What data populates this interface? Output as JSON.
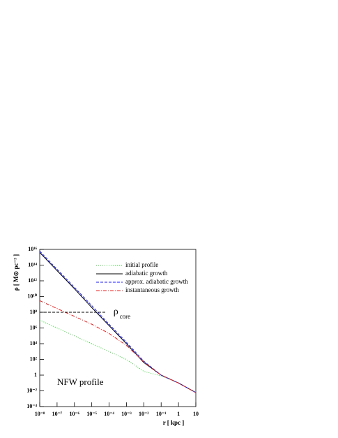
{
  "chart_data": {
    "type": "line",
    "x_label": "r [ kpc ]",
    "y_label": "ρ [ M⊙ pc⁻³ ]",
    "x": [
      1e-08,
      1e-07,
      1e-06,
      1e-05,
      0.0001,
      0.001,
      0.01,
      0.1,
      1,
      10
    ],
    "series": [
      {
        "name": "initial profile",
        "color": "#33cc33",
        "linestyle": "dotted",
        "values": [
          10000000.0,
          1000000.0,
          100000.0,
          10000.0,
          1000,
          100,
          3,
          0.8,
          0.1,
          0.006
        ]
      },
      {
        "name": "adiabatic growth",
        "color": "#000000",
        "linestyle": "solid",
        "values": [
          4000000000000000.0,
          20000000000000.0,
          100000000000.0,
          400000000.0,
          2000000.0,
          10000.0,
          40,
          1,
          0.1,
          0.006
        ]
      },
      {
        "name": "approx. adiabatic growth",
        "color": "#1a1aff",
        "linestyle": "dashed",
        "values": [
          6000000000000000.0,
          30000000000000.0,
          150000000000.0,
          700000000.0,
          3000000.0,
          15000.0,
          60,
          1,
          0.1,
          0.006
        ]
      },
      {
        "name": "instantaneous growth",
        "color": "#e62020",
        "linestyle": "dashdot",
        "values": [
          3000000000.0,
          300000000.0,
          30000000.0,
          3000000.0,
          200000.0,
          6000,
          50,
          1,
          0.1,
          0.006
        ]
      }
    ],
    "core_line": {
      "y": 100000000.0,
      "x": [
        1e-08,
        7e-05
      ],
      "label": "ρ",
      "subscript": "core",
      "color": "#000000"
    },
    "annotation": "NFW profile",
    "xscale": "log",
    "yscale": "log",
    "xlim": [
      1e-08,
      10
    ],
    "ylim": [
      0.0001,
      1e+16
    ],
    "xticks": [
      {
        "value": 1e-08,
        "label": "10⁻⁸"
      },
      {
        "value": 1e-07,
        "label": "10⁻⁷"
      },
      {
        "value": 1e-06,
        "label": "10⁻⁶"
      },
      {
        "value": 1e-05,
        "label": "10⁻⁵"
      },
      {
        "value": 0.0001,
        "label": "10⁻⁴"
      },
      {
        "value": 0.001,
        "label": "10⁻³"
      },
      {
        "value": 0.01,
        "label": "10⁻²"
      },
      {
        "value": 0.1,
        "label": "10⁻¹"
      },
      1,
      10
    ],
    "yticks": [
      {
        "value": 0.0001,
        "label": "10⁻⁴"
      },
      {
        "value": 0.01,
        "label": "10⁻²"
      },
      1,
      {
        "value": 100,
        "label": "10²"
      },
      {
        "value": 10000.0,
        "label": "10⁴"
      },
      {
        "value": 1000000.0,
        "label": "10⁶"
      },
      {
        "value": 100000000.0,
        "label": "10⁸"
      },
      {
        "value": 10000000000.0,
        "label": "10¹⁰"
      },
      {
        "value": 1000000000000.0,
        "label": "10¹²"
      },
      {
        "value": 100000000000000.0,
        "label": "10¹⁴"
      },
      {
        "value": 1e+16,
        "label": "10¹⁶"
      }
    ],
    "legend": "top-right"
  }
}
